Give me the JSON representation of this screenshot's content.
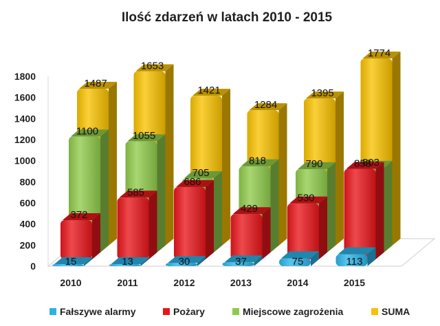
{
  "chart_data": {
    "type": "bar",
    "title": "Ilość zdarzeń w latach 2010 - 2015",
    "categories": [
      "2010",
      "2011",
      "2012",
      "2013",
      "2014",
      "2015"
    ],
    "series": [
      {
        "name": "Fałszywe alarmy",
        "values": [
          15,
          13,
          30,
          37,
          75,
          113
        ],
        "color": "#2bb3e6"
      },
      {
        "name": "Pożary",
        "values": [
          372,
          585,
          686,
          429,
          530,
          858
        ],
        "color": "#e8161b"
      },
      {
        "name": "Miejscowe zagrożenia",
        "values": [
          1100,
          1055,
          705,
          818,
          790,
          803
        ],
        "color": "#8fca4a"
      },
      {
        "name": "SUMA",
        "values": [
          1487,
          1653,
          1421,
          1284,
          1395,
          1774
        ],
        "color": "#f8c100"
      }
    ],
    "ylim": [
      0,
      1800
    ],
    "yticks": [
      "0",
      "200",
      "400",
      "600",
      "800",
      "1000",
      "1200",
      "1400",
      "1600",
      "1800"
    ],
    "xlabel": "",
    "ylabel": "",
    "legend_position": "bottom",
    "grid": false
  }
}
